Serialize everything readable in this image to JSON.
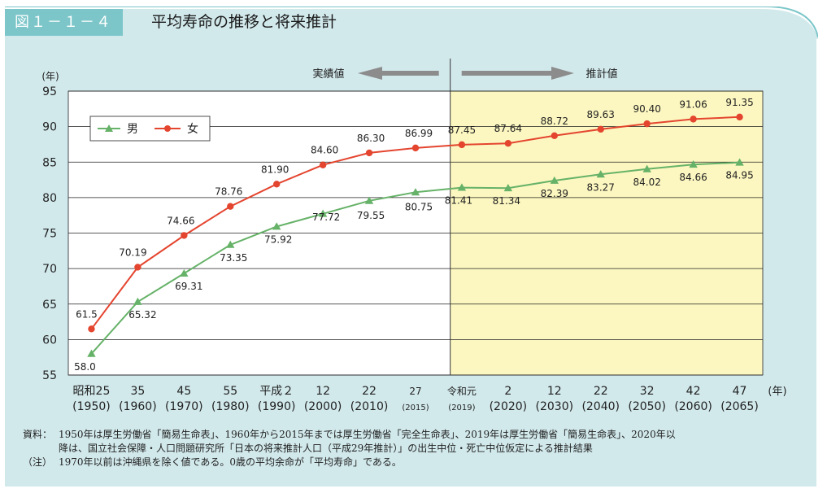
{
  "figure": {
    "number": "図１－１－４",
    "title": "平均寿命の推移と将来推計"
  },
  "colors": {
    "panel": "#d2e9ec",
    "title_tab": "#7cc6c9",
    "projection_bg": "#fcf7c0",
    "male": "#66b268",
    "female": "#e4452f",
    "arrow": "#8c8c8c"
  },
  "chart_data": {
    "type": "line",
    "ylabel": "(年)",
    "xlabel": "(年)",
    "ylim": [
      55,
      95
    ],
    "yticks": [
      "55",
      "60",
      "65",
      "70",
      "75",
      "80",
      "85",
      "90",
      "95"
    ],
    "grid": true,
    "legend_position": "top-left",
    "x": [
      1950,
      1960,
      1970,
      1980,
      1990,
      2000,
      2010,
      2015,
      2019,
      2020,
      2030,
      2040,
      2050,
      2060,
      2065
    ],
    "xtick_labels": [
      {
        "x": 1950,
        "line1": "昭和25",
        "line2": "(1950)"
      },
      {
        "x": 1960,
        "line1": "35",
        "line2": "(1960)"
      },
      {
        "x": 1970,
        "line1": "45",
        "line2": "(1970)"
      },
      {
        "x": 1980,
        "line1": "55",
        "line2": "(1980)"
      },
      {
        "x": 1990,
        "line1": "平成２",
        "line2": "(1990)"
      },
      {
        "x": 2000,
        "line1": "12",
        "line2": "(2000)"
      },
      {
        "x": 2010,
        "line1": "22",
        "line2": "(2010)"
      },
      {
        "x": 2015,
        "line1": "27",
        "line2": "(2015)"
      },
      {
        "x": 2019,
        "line1": "令和元",
        "line2": "(2019)"
      },
      {
        "x": 2020,
        "line1": "2",
        "line2": "(2020)"
      },
      {
        "x": 2030,
        "line1": "12",
        "line2": "(2030)"
      },
      {
        "x": 2040,
        "line1": "22",
        "line2": "(2040)"
      },
      {
        "x": 2050,
        "line1": "32",
        "line2": "(2050)"
      },
      {
        "x": 2060,
        "line1": "42",
        "line2": "(2060)"
      },
      {
        "x": 2065,
        "line1": "47",
        "line2": "(2065)"
      }
    ],
    "series": [
      {
        "name": "男",
        "marker": "triangle",
        "values": [
          58.0,
          65.32,
          69.31,
          73.35,
          75.92,
          77.72,
          79.55,
          80.75,
          81.41,
          81.34,
          82.39,
          83.27,
          84.02,
          84.66,
          84.95
        ],
        "labels": [
          "58.0",
          "65.32",
          "69.31",
          "73.35",
          "75.92",
          "77.72",
          "79.55",
          "80.75",
          "81.41",
          "81.34",
          "82.39",
          "83.27",
          "84.02",
          "84.66",
          "84.95"
        ]
      },
      {
        "name": "女",
        "marker": "circle",
        "values": [
          61.5,
          70.19,
          74.66,
          78.76,
          81.9,
          84.6,
          86.3,
          86.99,
          87.45,
          87.64,
          88.72,
          89.63,
          90.4,
          91.06,
          91.35
        ],
        "labels": [
          "61.5",
          "70.19",
          "74.66",
          "78.76",
          "81.90",
          "84.60",
          "86.30",
          "86.99",
          "87.45",
          "87.64",
          "88.72",
          "89.63",
          "90.40",
          "91.06",
          "91.35"
        ]
      }
    ],
    "annotations": {
      "actual": "実績値",
      "projected": "推計値"
    }
  },
  "notes": {
    "source_label": "資料：",
    "source_line1": "1950年は厚生労働省「簡易生命表」、1960年から2015年までは厚生労働省「完全生命表」、2019年は厚生労働省「簡易生命表」、2020年以",
    "source_line2": "降は、国立社会保障・人口問題研究所「日本の将来推計人口（平成29年推計）」の出生中位・死亡中位仮定による推計結果",
    "note_label": "（注）",
    "note_text": "1970年以前は沖縄県を除く値である。0歳の平均余命が「平均寿命」である。"
  }
}
